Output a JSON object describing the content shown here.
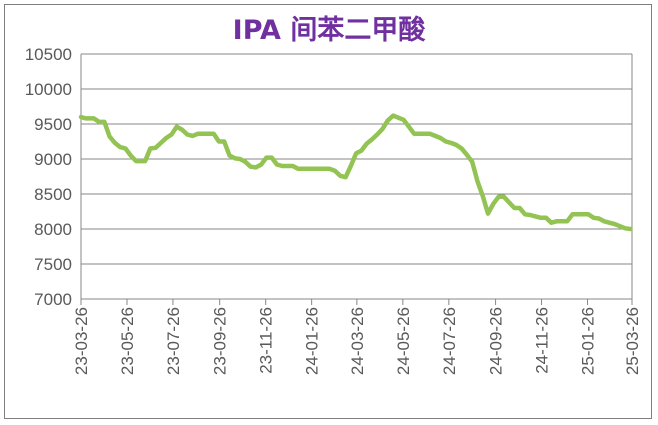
{
  "chart_data": {
    "type": "line",
    "title": "IPA 间苯二甲酸",
    "xlabel": "",
    "ylabel": "",
    "ylim": [
      7000,
      10500
    ],
    "yticks": [
      7000,
      7500,
      8000,
      8500,
      9000,
      9500,
      10000,
      10500
    ],
    "xticks": [
      "23-03-26",
      "23-05-26",
      "23-07-26",
      "23-09-26",
      "23-11-26",
      "24-01-26",
      "24-03-26",
      "24-05-26",
      "24-07-26",
      "24-09-26",
      "24-11-26",
      "25-01-26",
      "25-03-26"
    ],
    "grid": true,
    "line_color": "#92c353",
    "series": [
      {
        "values": [
          [
            "2023-03-26",
            9600
          ],
          [
            "2023-04-01",
            9580
          ],
          [
            "2023-04-12",
            9580
          ],
          [
            "2023-04-19",
            9530
          ],
          [
            "2023-04-26",
            9530
          ],
          [
            "2023-05-03",
            9320
          ],
          [
            "2023-05-10",
            9230
          ],
          [
            "2023-05-17",
            9170
          ],
          [
            "2023-05-24",
            9150
          ],
          [
            "2023-05-31",
            9050
          ],
          [
            "2023-06-07",
            8970
          ],
          [
            "2023-06-14",
            8970
          ],
          [
            "2023-06-19",
            8970
          ],
          [
            "2023-06-26",
            9150
          ],
          [
            "2023-07-03",
            9160
          ],
          [
            "2023-07-10",
            9230
          ],
          [
            "2023-07-17",
            9300
          ],
          [
            "2023-07-24",
            9350
          ],
          [
            "2023-07-31",
            9460
          ],
          [
            "2023-08-07",
            9420
          ],
          [
            "2023-08-14",
            9350
          ],
          [
            "2023-08-21",
            9330
          ],
          [
            "2023-08-28",
            9360
          ],
          [
            "2023-09-04",
            9360
          ],
          [
            "2023-09-11",
            9360
          ],
          [
            "2023-09-18",
            9360
          ],
          [
            "2023-09-25",
            9250
          ],
          [
            "2023-10-02",
            9250
          ],
          [
            "2023-10-09",
            9050
          ],
          [
            "2023-10-16",
            9010
          ],
          [
            "2023-10-23",
            9000
          ],
          [
            "2023-10-30",
            8960
          ],
          [
            "2023-11-06",
            8890
          ],
          [
            "2023-11-13",
            8880
          ],
          [
            "2023-11-20",
            8920
          ],
          [
            "2023-11-27",
            9020
          ],
          [
            "2023-12-04",
            9020
          ],
          [
            "2023-12-11",
            8920
          ],
          [
            "2023-12-18",
            8900
          ],
          [
            "2023-12-25",
            8900
          ],
          [
            "2024-01-01",
            8900
          ],
          [
            "2024-01-08",
            8860
          ],
          [
            "2024-01-15",
            8860
          ],
          [
            "2024-01-22",
            8860
          ],
          [
            "2024-01-29",
            8860
          ],
          [
            "2024-02-05",
            8860
          ],
          [
            "2024-02-12",
            8860
          ],
          [
            "2024-02-19",
            8860
          ],
          [
            "2024-02-26",
            8830
          ],
          [
            "2024-03-04",
            8760
          ],
          [
            "2024-03-11",
            8740
          ],
          [
            "2024-03-18",
            8900
          ],
          [
            "2024-03-25",
            9080
          ],
          [
            "2024-04-01",
            9120
          ],
          [
            "2024-04-08",
            9220
          ],
          [
            "2024-04-15",
            9280
          ],
          [
            "2024-04-22",
            9350
          ],
          [
            "2024-04-29",
            9430
          ],
          [
            "2024-05-06",
            9550
          ],
          [
            "2024-05-13",
            9620
          ],
          [
            "2024-05-20",
            9590
          ],
          [
            "2024-05-27",
            9560
          ],
          [
            "2024-06-03",
            9460
          ],
          [
            "2024-06-10",
            9360
          ],
          [
            "2024-06-17",
            9360
          ],
          [
            "2024-06-24",
            9360
          ],
          [
            "2024-07-01",
            9360
          ],
          [
            "2024-07-08",
            9330
          ],
          [
            "2024-07-15",
            9300
          ],
          [
            "2024-07-22",
            9250
          ],
          [
            "2024-07-29",
            9230
          ],
          [
            "2024-08-05",
            9200
          ],
          [
            "2024-08-12",
            9150
          ],
          [
            "2024-08-19",
            9060
          ],
          [
            "2024-08-26",
            8960
          ],
          [
            "2024-09-02",
            8680
          ],
          [
            "2024-09-09",
            8470
          ],
          [
            "2024-09-16",
            8220
          ],
          [
            "2024-09-23",
            8360
          ],
          [
            "2024-09-30",
            8460
          ],
          [
            "2024-10-07",
            8460
          ],
          [
            "2024-10-14",
            8380
          ],
          [
            "2024-10-21",
            8300
          ],
          [
            "2024-10-28",
            8300
          ],
          [
            "2024-11-04",
            8210
          ],
          [
            "2024-11-11",
            8200
          ],
          [
            "2024-11-18",
            8180
          ],
          [
            "2024-11-25",
            8160
          ],
          [
            "2024-12-02",
            8160
          ],
          [
            "2024-12-09",
            8090
          ],
          [
            "2024-12-16",
            8110
          ],
          [
            "2024-12-23",
            8110
          ],
          [
            "2024-12-30",
            8110
          ],
          [
            "2025-01-06",
            8210
          ],
          [
            "2025-01-13",
            8210
          ],
          [
            "2025-01-20",
            8210
          ],
          [
            "2025-01-27",
            8210
          ],
          [
            "2025-02-03",
            8160
          ],
          [
            "2025-02-10",
            8150
          ],
          [
            "2025-02-17",
            8110
          ],
          [
            "2025-02-24",
            8090
          ],
          [
            "2025-03-03",
            8070
          ],
          [
            "2025-03-10",
            8040
          ],
          [
            "2025-03-17",
            8010
          ],
          [
            "2025-03-24",
            8000
          ]
        ]
      }
    ]
  }
}
